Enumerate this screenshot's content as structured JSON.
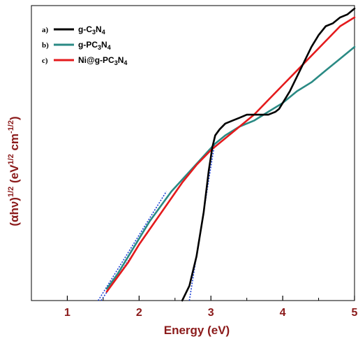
{
  "chart_data": {
    "type": "line",
    "xlabel": "Energy (eV)",
    "ylabel": "(αhν)^1/2 (eV^1/2 cm^-1/2)",
    "xlim": [
      0.5,
      5.0
    ],
    "xticks": [
      1,
      2,
      3,
      4,
      5
    ],
    "ylim": [
      0.0,
      1.0
    ],
    "y_tick_labels": "none",
    "grid": false,
    "legend_position": "top-left",
    "colors": {
      "axis_label": "#8b1a1a",
      "tick_label": "#8b1a1a",
      "fit_line": "#1a3fd6",
      "fit_overlap": "#7a2b7a"
    },
    "series": [
      {
        "name": "g-C3N4",
        "legend_tag": "a)",
        "color": "#000000",
        "x": [
          2.6,
          2.7,
          2.8,
          2.9,
          2.97,
          3.02,
          3.06,
          3.12,
          3.2,
          3.3,
          3.4,
          3.5,
          3.6,
          3.7,
          3.8,
          3.9,
          3.95,
          4.0,
          4.1,
          4.2,
          4.3,
          4.4,
          4.5,
          4.6,
          4.7,
          4.8,
          4.9,
          5.0
        ],
        "y": [
          0.0,
          0.05,
          0.15,
          0.3,
          0.44,
          0.52,
          0.56,
          0.58,
          0.6,
          0.61,
          0.62,
          0.63,
          0.63,
          0.63,
          0.63,
          0.64,
          0.65,
          0.67,
          0.71,
          0.76,
          0.81,
          0.86,
          0.9,
          0.93,
          0.94,
          0.96,
          0.97,
          0.99
        ]
      },
      {
        "name": "g-PC3N4",
        "legend_tag": "b)",
        "color": "#2a8a84",
        "x": [
          1.55,
          1.7,
          1.85,
          2.0,
          2.15,
          2.3,
          2.45,
          2.6,
          2.75,
          2.9,
          3.05,
          3.2,
          3.4,
          3.6,
          3.8,
          4.0,
          4.2,
          4.4,
          4.6,
          4.8,
          5.0
        ],
        "y": [
          0.04,
          0.09,
          0.15,
          0.21,
          0.27,
          0.32,
          0.37,
          0.41,
          0.45,
          0.49,
          0.53,
          0.56,
          0.59,
          0.61,
          0.64,
          0.67,
          0.71,
          0.74,
          0.78,
          0.82,
          0.86
        ]
      },
      {
        "name": "Ni@g-PC3N4",
        "legend_tag": "c)",
        "color": "#e41a1c",
        "x": [
          1.55,
          1.7,
          1.85,
          2.0,
          2.2,
          2.4,
          2.6,
          2.8,
          3.0,
          3.2,
          3.4,
          3.6,
          3.8,
          4.0,
          4.2,
          4.4,
          4.6,
          4.8,
          5.0
        ],
        "y": [
          0.03,
          0.08,
          0.13,
          0.19,
          0.26,
          0.33,
          0.4,
          0.46,
          0.51,
          0.55,
          0.59,
          0.63,
          0.68,
          0.73,
          0.78,
          0.83,
          0.88,
          0.93,
          0.96
        ]
      }
    ],
    "fits": [
      {
        "for": "g-C3N4",
        "x": [
          2.7,
          3.05
        ],
        "y": [
          0.0,
          0.53
        ]
      },
      {
        "for": "g-PC3N4",
        "x": [
          1.43,
          2.38
        ],
        "y": [
          0.0,
          0.37
        ]
      },
      {
        "for": "Ni@g-PC3N4",
        "x": [
          1.47,
          2.4
        ],
        "y": [
          0.0,
          0.33
        ]
      }
    ]
  }
}
